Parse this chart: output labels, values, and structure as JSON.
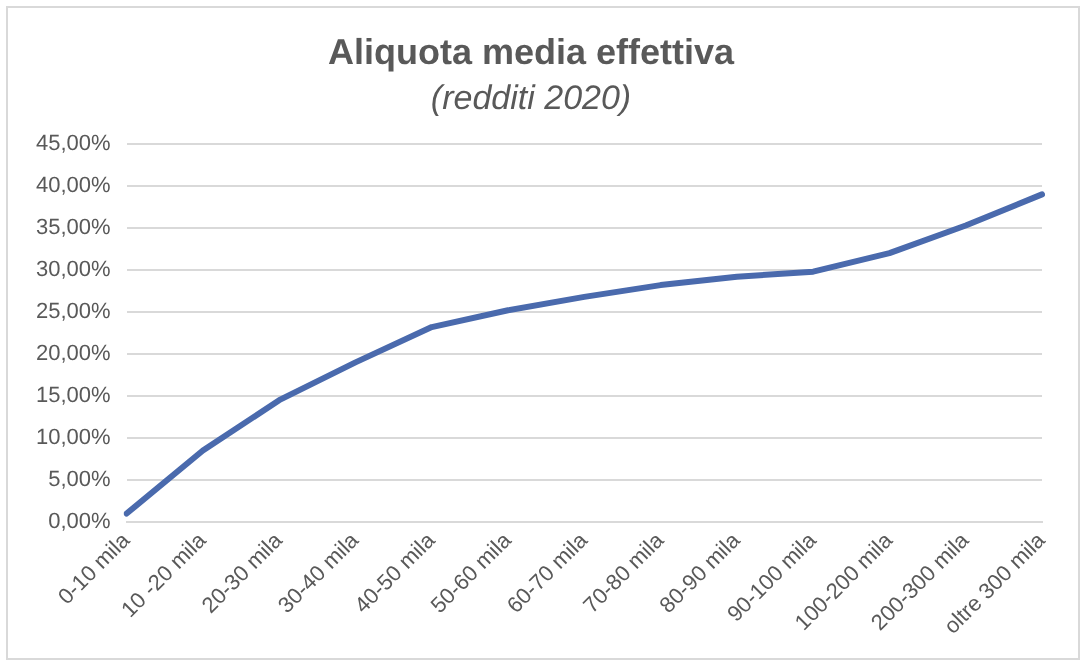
{
  "chart_data": {
    "type": "line",
    "title": "Aliquota media effettiva",
    "subtitle": "(redditi 2020)",
    "categories": [
      "0-10 mila",
      "10 -20 mila",
      "20-30 mila",
      "30-40 mila",
      "40-50 mila",
      "50-60 mila",
      "60-70 mila",
      "70-80 mila",
      "80-90 mila",
      "90-100 mila",
      "100-200 mila",
      "200-300 mila",
      "oltre 300 mila"
    ],
    "series": [
      {
        "color": "#4a6aad",
        "values": [
          1.0,
          8.5,
          14.5,
          19.0,
          23.2,
          25.2,
          26.8,
          28.2,
          29.2,
          29.8,
          32.0,
          35.3,
          39.0
        ]
      }
    ],
    "ylim": [
      0,
      45
    ],
    "yticks": [
      {
        "value": 0,
        "label": "0,00%"
      },
      {
        "value": 5,
        "label": "5,00%"
      },
      {
        "value": 10,
        "label": "10,00%"
      },
      {
        "value": 15,
        "label": "15,00%"
      },
      {
        "value": 20,
        "label": "20,00%"
      },
      {
        "value": 25,
        "label": "25,00%"
      },
      {
        "value": 30,
        "label": "30,00%"
      },
      {
        "value": 35,
        "label": "35,00%"
      },
      {
        "value": 40,
        "label": "40,00%"
      },
      {
        "value": 45,
        "label": "45,00%"
      }
    ],
    "grid": "y",
    "legend": false,
    "marker": "none",
    "line_style": "solid"
  }
}
